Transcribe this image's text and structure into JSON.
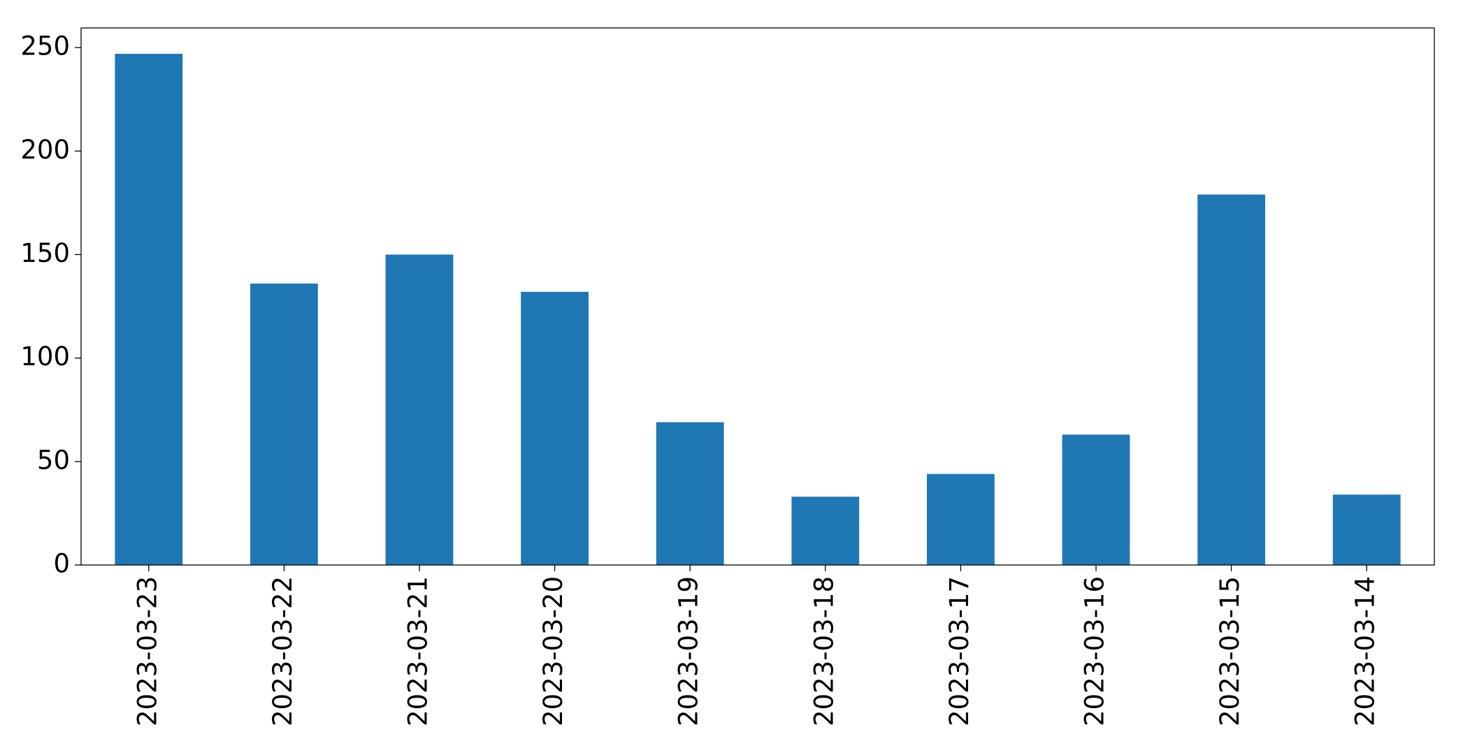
{
  "chart_data": {
    "type": "bar",
    "categories": [
      "2023-03-23",
      "2023-03-22",
      "2023-03-21",
      "2023-03-20",
      "2023-03-19",
      "2023-03-18",
      "2023-03-17",
      "2023-03-16",
      "2023-03-15",
      "2023-03-14"
    ],
    "values": [
      247,
      136,
      150,
      132,
      69,
      33,
      44,
      63,
      179,
      34
    ],
    "color": "#1f77b4",
    "ylim": [
      0,
      259.5
    ],
    "yticks": [
      0,
      50,
      100,
      150,
      200,
      250
    ],
    "grid": false
  }
}
